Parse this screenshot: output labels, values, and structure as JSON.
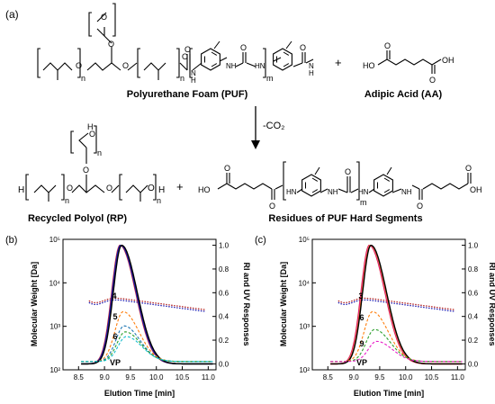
{
  "scheme": {
    "panel_label": "(a)",
    "puf_label": "Polyurethane Foam (PUF)",
    "aa_label": "Adipic Acid (AA)",
    "arrow_label": "-CO₂",
    "rp_label": "Recycled Polyol (RP)",
    "hs_label": "Residues of PUF Hard Segments",
    "plus": "+",
    "sub_n": "n",
    "sub_m": "m",
    "atom_O": "O",
    "atom_H": "H",
    "atom_NH": "NH",
    "atom_HN": "HN",
    "atom_N": "N",
    "atom_OH": "OH",
    "atom_HO": "HO"
  },
  "chart_data": [
    {
      "type": "line",
      "panel": "(b)",
      "xlabel": "Elution Time [min]",
      "ylabel_left": "Molecular Weight [Da]",
      "ylabel_right": "RI and UV Responses",
      "xlim": [
        8.2,
        11.15
      ],
      "x_ticks": [
        "8.5",
        "9.0",
        "9.5",
        "10.0",
        "10.5",
        "11.0"
      ],
      "ylim_left_log10": [
        2,
        5
      ],
      "y_left_ticks": [
        "10²",
        "10³",
        "10⁴",
        "10⁵"
      ],
      "ylim_right": [
        -0.05,
        1.05
      ],
      "y_right_ticks": [
        "0.0",
        "0.2",
        "0.4",
        "0.6",
        "0.8",
        "1.0"
      ],
      "labels": [
        "4",
        "5",
        "6",
        "VP"
      ],
      "series": [
        {
          "color": "#d62728",
          "style": "solid",
          "center": 9.3,
          "peak": 1.0
        },
        {
          "color": "#2ca02c",
          "style": "solid",
          "center": 9.32,
          "peak": 1.0
        },
        {
          "color": "#1f1fb4",
          "style": "solid",
          "center": 9.31,
          "peak": 1.0
        },
        {
          "color": "#000000",
          "style": "solid",
          "center": 9.33,
          "peak": 1.0
        },
        {
          "color": "#ff7f0e",
          "style": "dashed",
          "center": 9.36,
          "peak": 0.42
        },
        {
          "color": "#1f77b4",
          "style": "dashed",
          "center": 9.38,
          "peak": 0.3
        },
        {
          "color": "#2ca02c",
          "style": "dashed",
          "center": 9.4,
          "peak": 0.25
        },
        {
          "color": "#17becf",
          "style": "dashed",
          "center": 9.42,
          "peak": 0.21
        }
      ]
    },
    {
      "type": "line",
      "panel": "(c)",
      "xlabel": "Elution Time [min]",
      "ylabel_left": "Molecular Weight [Da]",
      "ylabel_right": "RI and UV Responses",
      "xlim": [
        8.2,
        11.15
      ],
      "x_ticks": [
        "8.5",
        "9.0",
        "9.5",
        "10.0",
        "10.5",
        "11.0"
      ],
      "ylim_left_log10": [
        2,
        5
      ],
      "y_left_ticks": [
        "10²",
        "10³",
        "10⁴",
        "10⁵"
      ],
      "ylim_right": [
        -0.05,
        1.05
      ],
      "y_right_ticks": [
        "0.0",
        "0.2",
        "0.4",
        "0.6",
        "0.8",
        "1.0"
      ],
      "labels": [
        "3",
        "6",
        "9",
        "VP"
      ],
      "series": [
        {
          "color": "#d62728",
          "style": "solid",
          "center": 9.3,
          "peak": 1.0
        },
        {
          "color": "#e91ec8",
          "style": "solid",
          "center": 9.31,
          "peak": 1.0
        },
        {
          "color": "#ff7f0e",
          "style": "solid",
          "center": 9.32,
          "peak": 1.0
        },
        {
          "color": "#000000",
          "style": "solid",
          "center": 9.33,
          "peak": 1.0
        },
        {
          "color": "#ff7f0e",
          "style": "dashed",
          "center": 9.36,
          "peak": 0.42
        },
        {
          "color": "#2ca02c",
          "style": "dashed",
          "center": 9.4,
          "peak": 0.27
        },
        {
          "color": "#e91ec8",
          "style": "dashed",
          "center": 9.44,
          "peak": 0.17
        }
      ]
    }
  ]
}
